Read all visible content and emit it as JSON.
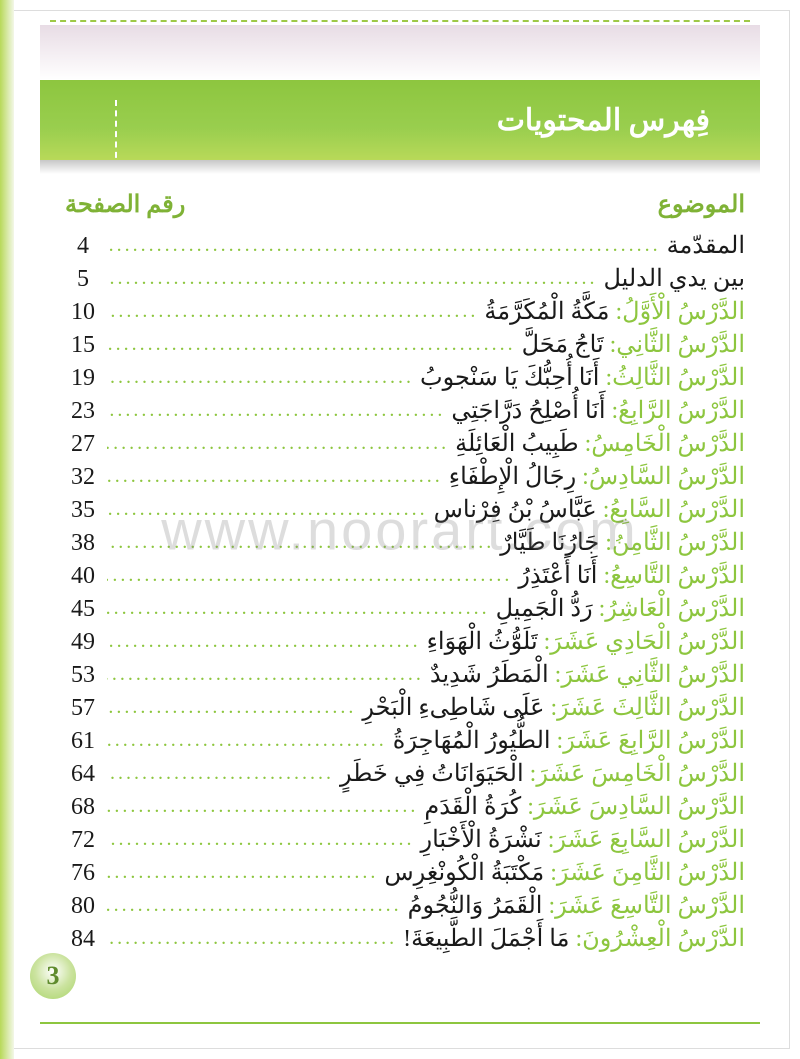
{
  "colors": {
    "accent": "#8dc63f",
    "accent_light": "#b8d959",
    "text": "#1a1a1a",
    "white": "#ffffff"
  },
  "header": {
    "title": "فِهرس المحتويات"
  },
  "columns": {
    "topic": "الموضوع",
    "page": "رقم الصفحة"
  },
  "page_number": "3",
  "watermark": "www.noorart.com",
  "toc": [
    {
      "label": "",
      "title": "المقدّمة",
      "page": "4"
    },
    {
      "label": "",
      "title": "بين يدي الدليل",
      "page": "5"
    },
    {
      "label": "الدَّرْسُ الْأَوَّلُ:",
      "title": "مَكَّةُ الْمُكَرَّمَةُ",
      "page": "10"
    },
    {
      "label": "الدَّرْسُ الثَّانِي:",
      "title": "تَاجُ مَحَلَّ",
      "page": "15"
    },
    {
      "label": "الدَّرْسُ الثَّالِثُ:",
      "title": "أَنَا أُحِبُّكَ يَا سَنْجوبُ",
      "page": "19"
    },
    {
      "label": "الدَّرْسُ الرَّابِعُ:",
      "title": "أَنَا أُصْلِحُ دَرَّاجَتِي",
      "page": "23"
    },
    {
      "label": "الدَّرْسُ الْخَامِسُ:",
      "title": "طَبِيبُ الْعَائِلَةِ",
      "page": "27"
    },
    {
      "label": "الدَّرْسُ السَّادِسُ:",
      "title": "رِجَالُ الْإِطْفَاءِ",
      "page": "32"
    },
    {
      "label": "الدَّرْسُ السَّابِعُ:",
      "title": "عَبَّاسُ بْنُ فِرْناس",
      "page": "35"
    },
    {
      "label": "الدَّرْسُ الثَّامِنُ:",
      "title": "جَارُنَا طَيَّارٌ",
      "page": "38"
    },
    {
      "label": "الدَّرْسُ التَّاسِعُ:",
      "title": "أَنَا أَعْتَذِرُ",
      "page": "40"
    },
    {
      "label": "الدَّرْسُ الْعَاشِرُ:",
      "title": "رَدُّ الْجَمِيلِ",
      "page": "45"
    },
    {
      "label": "الدَّرْسُ الْحَادِي عَشَرَ:",
      "title": "تَلَوُّثُ الْهَوَاءِ",
      "page": "49"
    },
    {
      "label": "الدَّرْسُ الثَّانِي عَشَرَ:",
      "title": "الْمَطَرُ شَدِيدٌ",
      "page": "53"
    },
    {
      "label": "الدَّرْسُ الثَّالِثَ عَشَرَ:",
      "title": "عَلَى شَاطِىءِ الْبَحْرِ",
      "page": "57"
    },
    {
      "label": "الدَّرْسُ الرَّابِعَ عَشَرَ:",
      "title": "الطُّيُورُ الْمُهَاجِرَةُ",
      "page": "61"
    },
    {
      "label": "الدَّرْسُ الْخَامِسَ عَشَرَ:",
      "title": "الْحَيَوَانَاتُ فِي خَطَرٍ",
      "page": "64"
    },
    {
      "label": "الدَّرْسُ السَّادِسَ عَشَرَ:",
      "title": "كُرَةُ الْقَدَمِ",
      "page": "68"
    },
    {
      "label": "الدَّرْسُ السَّابِعَ عَشَرَ:",
      "title": "نَشْرَةُ الْأَخْبَارِ",
      "page": "72"
    },
    {
      "label": "الدَّرْسُ الثَّامِنَ عَشَرَ:",
      "title": "مَكْتَبَةُ الْكُونْغِرِس",
      "page": "76"
    },
    {
      "label": "الدَّرْسُ التَّاسِعَ عَشَرَ:",
      "title": "الْقَمَرُ وَالنُّجُومُ",
      "page": "80"
    },
    {
      "label": "الدَّرْسُ الْعِشْرُونَ:",
      "title": "مَا أَجْمَلَ الطَّبِيعَةَ!",
      "page": "84"
    }
  ]
}
